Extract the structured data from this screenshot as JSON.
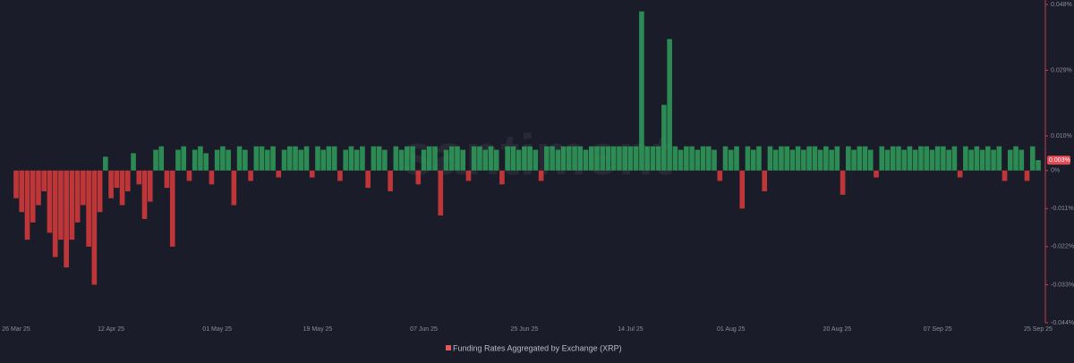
{
  "chart_data": {
    "type": "bar",
    "legend": "Funding Rates Aggregated by Exchange (XRP)",
    "watermark": "santiment",
    "positive_color": "#2f9e5a",
    "negative_color": "#d13a3a",
    "legend_color": "#e05a5a",
    "grid": false,
    "ylim": [
      -0.044,
      0.048
    ],
    "yticks": [
      {
        "value": 0.048,
        "label": "0.048%"
      },
      {
        "value": 0.029,
        "label": "0.029%"
      },
      {
        "value": 0.01,
        "label": "0.010%"
      },
      {
        "value": 0,
        "label": "0%"
      },
      {
        "value": -0.011,
        "label": "-0.011%"
      },
      {
        "value": -0.022,
        "label": "-0.022%"
      },
      {
        "value": -0.033,
        "label": "-0.033%"
      },
      {
        "value": -0.044,
        "label": "-0.044%"
      }
    ],
    "marker": {
      "value": 0.003,
      "label": "0.003%"
    },
    "categories": [
      "26 Mar 25",
      null,
      null,
      null,
      null,
      null,
      null,
      null,
      null,
      null,
      null,
      null,
      null,
      null,
      null,
      null,
      null,
      "12 Apr 25",
      null,
      null,
      null,
      null,
      null,
      null,
      null,
      null,
      null,
      null,
      null,
      null,
      null,
      null,
      null,
      null,
      null,
      null,
      "01 May 25",
      null,
      null,
      null,
      null,
      null,
      null,
      null,
      null,
      null,
      null,
      null,
      null,
      null,
      null,
      null,
      null,
      null,
      "19 May 25",
      null,
      null,
      null,
      null,
      null,
      null,
      null,
      null,
      null,
      null,
      null,
      null,
      null,
      null,
      null,
      null,
      null,
      null,
      "07 Jun 25",
      null,
      null,
      null,
      null,
      null,
      null,
      null,
      null,
      null,
      null,
      null,
      null,
      null,
      null,
      null,
      null,
      null,
      "25 Jun 25",
      null,
      null,
      null,
      null,
      null,
      null,
      null,
      null,
      null,
      null,
      null,
      null,
      null,
      null,
      null,
      null,
      null,
      null,
      "14 Jul 25",
      null,
      null,
      null,
      null,
      null,
      null,
      null,
      null,
      null,
      null,
      null,
      null,
      null,
      null,
      null,
      null,
      null,
      "01 Aug 25",
      null,
      null,
      null,
      null,
      null,
      null,
      null,
      null,
      null,
      null,
      null,
      null,
      null,
      null,
      null,
      null,
      null,
      null,
      "20 Aug 25",
      null,
      null,
      null,
      null,
      null,
      null,
      null,
      null,
      null,
      null,
      null,
      null,
      null,
      null,
      null,
      null,
      null,
      "07 Sep 25",
      null,
      null,
      null,
      null,
      null,
      null,
      null,
      null,
      null,
      null,
      null,
      null,
      null,
      null,
      null,
      null,
      null,
      "25 Sep 25"
    ],
    "values": [
      -0.008,
      -0.012,
      -0.02,
      -0.015,
      -0.01,
      -0.006,
      -0.018,
      -0.025,
      -0.02,
      -0.028,
      -0.02,
      -0.015,
      -0.01,
      -0.022,
      -0.033,
      -0.012,
      0.004,
      -0.008,
      -0.005,
      -0.01,
      -0.006,
      0.005,
      -0.004,
      -0.014,
      -0.009,
      0.006,
      0.007,
      -0.005,
      -0.022,
      0.006,
      0.007,
      -0.003,
      0.006,
      0.007,
      0.005,
      -0.004,
      0.006,
      0.007,
      0.006,
      -0.01,
      0.007,
      0.006,
      -0.003,
      0.007,
      0.007,
      0.006,
      0.007,
      -0.002,
      0.006,
      0.007,
      0.007,
      0.006,
      0.007,
      -0.002,
      0.007,
      0.006,
      0.007,
      0.007,
      -0.003,
      0.006,
      0.007,
      0.006,
      0.007,
      -0.005,
      0.007,
      0.007,
      0.006,
      -0.006,
      0.007,
      0.006,
      0.007,
      0.007,
      -0.004,
      0.006,
      0.007,
      0.007,
      -0.013,
      0.006,
      0.007,
      0.007,
      0.006,
      -0.003,
      0.007,
      0.007,
      0.006,
      0.007,
      0.006,
      -0.004,
      0.007,
      0.007,
      0.006,
      0.007,
      0.007,
      0.006,
      -0.003,
      0.007,
      0.007,
      0.006,
      0.007,
      0.007,
      0.007,
      0.007,
      0.006,
      0.007,
      0.007,
      0.007,
      0.007,
      0.007,
      0.007,
      0.007,
      0.007,
      0.007,
      0.046,
      0.007,
      0.007,
      0.007,
      0.019,
      0.038,
      0.007,
      0.006,
      0.007,
      0.007,
      0.006,
      0.007,
      0.007,
      0.006,
      -0.003,
      0.007,
      0.006,
      0.007,
      -0.011,
      0.007,
      0.006,
      0.007,
      -0.006,
      0.007,
      0.006,
      0.007,
      0.007,
      0.006,
      0.007,
      0.006,
      0.007,
      0.007,
      0.006,
      0.007,
      0.006,
      0.007,
      -0.007,
      0.007,
      0.006,
      0.007,
      0.007,
      0.006,
      -0.002,
      0.007,
      0.006,
      0.007,
      0.007,
      0.006,
      0.007,
      0.006,
      0.007,
      0.007,
      0.006,
      0.007,
      0.007,
      0.006,
      0.007,
      -0.002,
      0.007,
      0.006,
      0.007,
      0.006,
      0.007,
      0.006,
      0.007,
      -0.003,
      0.006,
      0.007,
      0.006,
      -0.003,
      0.007,
      0.003
    ]
  }
}
